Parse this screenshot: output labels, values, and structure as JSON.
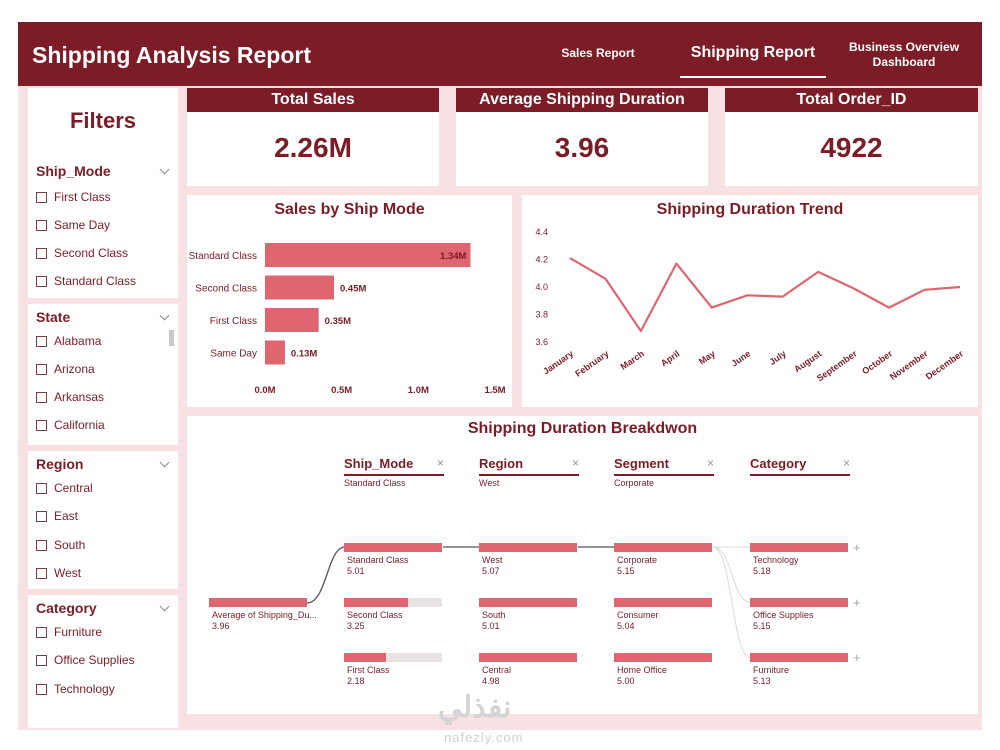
{
  "header": {
    "title": "Shipping Analysis Report",
    "nav": [
      "Sales Report",
      "Shipping Report",
      "Business Overview Dashboard"
    ],
    "active_nav": "Shipping Report",
    "bg_color": "#7b1c26"
  },
  "filters": {
    "title": "Filters",
    "groups": [
      {
        "label": "Ship_Mode",
        "options": [
          "First Class",
          "Same Day",
          "Second Class",
          "Standard Class"
        ]
      },
      {
        "label": "State",
        "options": [
          "Alabama",
          "Arizona",
          "Arkansas",
          "California"
        ]
      },
      {
        "label": "Region",
        "options": [
          "Central",
          "East",
          "South",
          "West"
        ]
      },
      {
        "label": "Category",
        "options": [
          "Furniture",
          "Office Supplies",
          "Technology"
        ]
      }
    ]
  },
  "kpis": [
    {
      "label": "Total Sales",
      "value": "2.26M"
    },
    {
      "label": "Average Shipping Duration",
      "value": "3.96"
    },
    {
      "label": "Total Order_ID",
      "value": "4922"
    }
  ],
  "chart_data": [
    {
      "type": "bar",
      "orientation": "horizontal",
      "title": "Sales by Ship Mode",
      "categories": [
        "Standard Class",
        "Second Class",
        "First Class",
        "Same Day"
      ],
      "values": [
        1.34,
        0.45,
        0.35,
        0.13
      ],
      "data_labels": [
        "1.34M",
        "0.45M",
        "0.35M",
        "0.13M"
      ],
      "x_ticks": [
        "0.0M",
        "0.5M",
        "1.0M",
        "1.5M"
      ],
      "xlim": [
        0,
        1.5
      ],
      "unit": "M",
      "bar_color": "#df6570"
    },
    {
      "type": "line",
      "title": "Shipping Duration Trend",
      "x": [
        "January",
        "February",
        "March",
        "April",
        "May",
        "June",
        "July",
        "August",
        "September",
        "October",
        "November",
        "December"
      ],
      "values": [
        4.21,
        4.06,
        3.68,
        4.17,
        3.85,
        3.94,
        3.93,
        4.11,
        3.99,
        3.85,
        3.98,
        4.0
      ],
      "y_ticks": [
        "4.4",
        "4.2",
        "4.0",
        "3.8",
        "3.6"
      ],
      "ylim": [
        3.6,
        4.4
      ],
      "line_color": "#df6570"
    }
  ],
  "tree": {
    "title": "Shipping Duration Breakdwon",
    "root": {
      "label": "Average of Shipping_Du...",
      "value": "3.96",
      "fill": 1.0
    },
    "columns": [
      {
        "header": "Ship_Mode",
        "selected": "Standard Class",
        "nodes": [
          {
            "label": "Standard Class",
            "value": "5.01",
            "fill": 1.0
          },
          {
            "label": "Second Class",
            "value": "3.25",
            "fill": 0.65
          },
          {
            "label": "First Class",
            "value": "2.18",
            "fill": 0.43
          }
        ]
      },
      {
        "header": "Region",
        "selected": "West",
        "nodes": [
          {
            "label": "West",
            "value": "5.07",
            "fill": 1.0
          },
          {
            "label": "South",
            "value": "5.01",
            "fill": 1.0
          },
          {
            "label": "Central",
            "value": "4.98",
            "fill": 1.0
          }
        ]
      },
      {
        "header": "Segment",
        "selected": "Corporate",
        "nodes": [
          {
            "label": "Corporate",
            "value": "5.15",
            "fill": 1.0
          },
          {
            "label": "Consumer",
            "value": "5.04",
            "fill": 1.0
          },
          {
            "label": "Home Office",
            "value": "5.00",
            "fill": 1.0
          }
        ]
      },
      {
        "header": "Category",
        "selected": "",
        "nodes": [
          {
            "label": "Technology",
            "value": "5.18",
            "fill": 1.0
          },
          {
            "label": "Office Supplies",
            "value": "5.15",
            "fill": 1.0
          },
          {
            "label": "Furniture",
            "value": "5.13",
            "fill": 1.0
          }
        ]
      }
    ]
  },
  "watermark": {
    "text": "نفذلي",
    "url": "nafezly.com"
  }
}
